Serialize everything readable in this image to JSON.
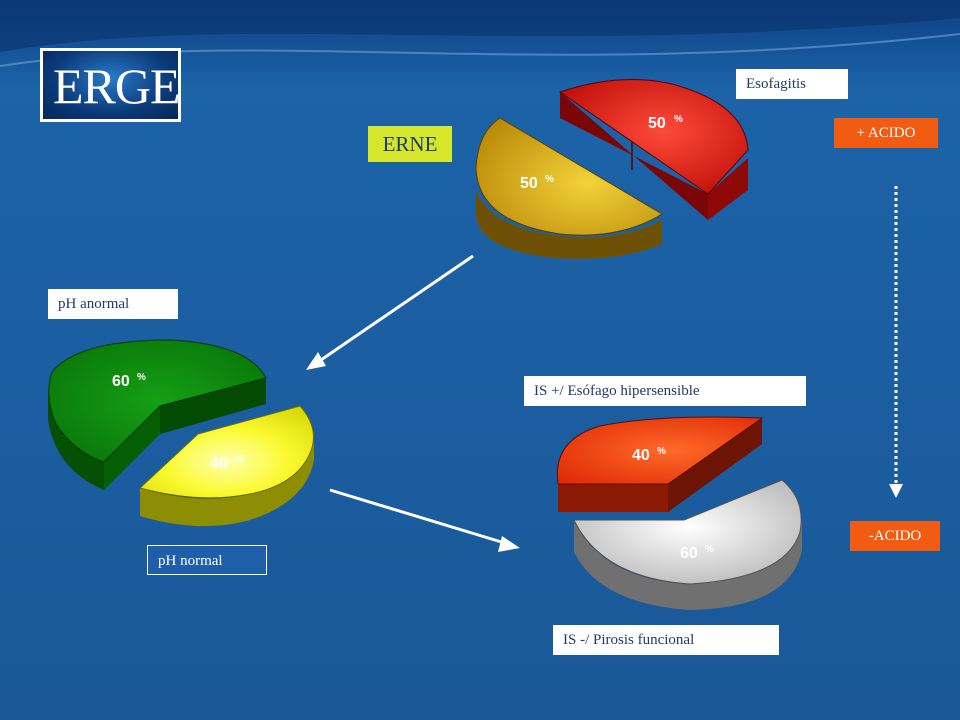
{
  "title": "ERGE",
  "erne_label": "ERNE",
  "labels": {
    "esofagitis": "Esofagitis",
    "acido_plus": "+ ACIDO",
    "acido_minus": "-ACIDO",
    "ph_anormal": "pH anormal",
    "ph_normal": "pH normal",
    "is_positive": "IS +/ Esófago hipersensible",
    "is_negative": "IS -/ Pirosis funcional"
  },
  "pies": {
    "top": [
      {
        "value": 50,
        "unit": "%",
        "color": "#d8140a"
      },
      {
        "value": 50,
        "unit": "%",
        "color": "#d8a810"
      }
    ],
    "left": [
      {
        "value": 60,
        "unit": "%",
        "color": "#0b8a0b"
      },
      {
        "value": 40,
        "unit": "%",
        "color": "#f0f00a"
      }
    ],
    "right": [
      {
        "value": 40,
        "unit": "%",
        "color": "#f03c0a"
      },
      {
        "value": 60,
        "unit": "%",
        "color": "#d4d4d4"
      }
    ]
  },
  "colors": {
    "background": "#1a5a9c",
    "acid_box": "#f25b12",
    "erne_box": "#d6e62a"
  }
}
